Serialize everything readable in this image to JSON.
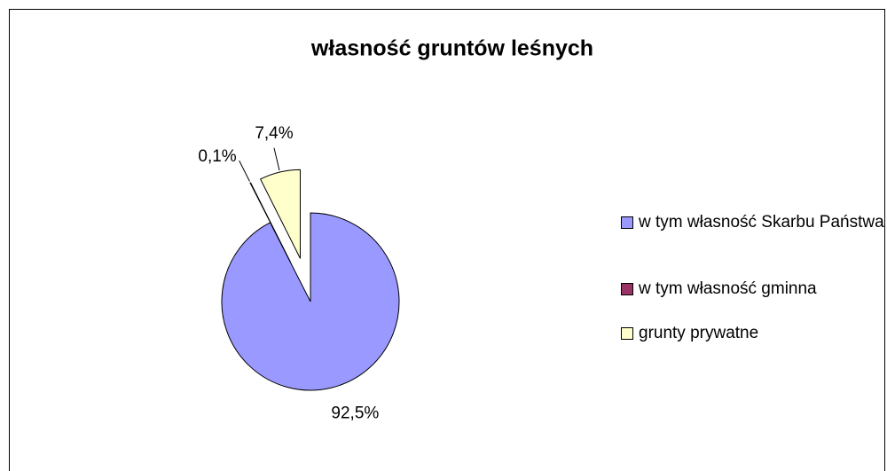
{
  "chart_data": {
    "type": "pie",
    "title": "własność gruntów leśnych",
    "categories": [
      "w tym własność Skarbu Państwa",
      "w tym własność gminna",
      "grunty prywatne"
    ],
    "values": [
      92.5,
      0.1,
      7.4
    ],
    "value_labels": [
      "92,5%",
      "0,1%",
      "7,4%"
    ],
    "colors": [
      "#9999ff",
      "#993366",
      "#ffffcc"
    ],
    "legend": "right"
  }
}
